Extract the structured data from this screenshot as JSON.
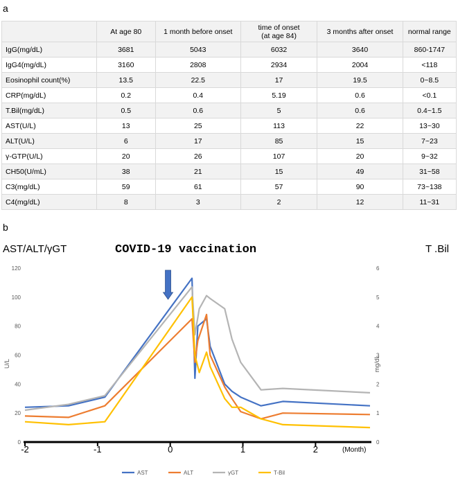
{
  "panel_a_label": "a",
  "panel_b_label": "b",
  "table": {
    "headers": [
      "",
      "At age 80",
      "1 month before onset",
      "time of onset\n(at age 84)",
      "3 months after onset",
      "normal range"
    ],
    "header_lines": [
      [
        ""
      ],
      [
        "At age 80"
      ],
      [
        "1 month before onset"
      ],
      [
        "time of onset",
        "(at age 84)"
      ],
      [
        "3 months after onset"
      ],
      [
        "normal range"
      ]
    ],
    "rows": [
      [
        "IgG(mg/dL)",
        "3681",
        "5043",
        "6032",
        "3640",
        "860-1747"
      ],
      [
        "IgG4(mg/dL)",
        "3160",
        "2808",
        "2934",
        "2004",
        "<118"
      ],
      [
        "Eosinophil count(%)",
        "13.5",
        "22.5",
        "17",
        "19.5",
        "0~8.5"
      ],
      [
        "CRP(mg/dL)",
        "0.2",
        "0.4",
        "5.19",
        "0.6",
        "<0.1"
      ],
      [
        "T.Bil(mg/dL)",
        "0.5",
        "0.6",
        "5",
        "0.6",
        "0.4~1.5"
      ],
      [
        "AST(U/L)",
        "13",
        "25",
        "113",
        "22",
        "13~30"
      ],
      [
        "ALT(U/L)",
        "6",
        "17",
        "85",
        "15",
        "7~23"
      ],
      [
        "γ-GTP(U/L)",
        "20",
        "26",
        "107",
        "20",
        "9~32"
      ],
      [
        "CH50(U/mL)",
        "38",
        "21",
        "15",
        "49",
        "31~58"
      ],
      [
        "C3(mg/dL)",
        "59",
        "61",
        "57",
        "90",
        "73~138"
      ],
      [
        "C4(mg/dL)",
        "8",
        "3",
        "2",
        "12",
        "11~31"
      ]
    ]
  },
  "chart_data": {
    "type": "line",
    "left_header": "AST/ALT/γGT",
    "right_header": "T .Bil",
    "annotation": "COVID-19 vaccination",
    "annotation_x": -0.03,
    "ylabel": "U/L",
    "y2label": "mg/dL",
    "xlabel": "(Month)",
    "xlim": [
      -2,
      2.75
    ],
    "ylim": [
      0,
      120
    ],
    "y2lim": [
      0,
      6
    ],
    "yticks": [
      0,
      20,
      40,
      60,
      80,
      100,
      120
    ],
    "y2ticks": [
      0,
      1,
      2,
      3,
      4,
      5,
      6
    ],
    "xticks": [
      -2,
      -1,
      0,
      1,
      2
    ],
    "grid": false,
    "legend_position": "bottom",
    "series": [
      {
        "name": "AST",
        "color": "#4472c4",
        "axis": "left",
        "x": [
          -2,
          -1.4,
          -0.9,
          0.3,
          0.34,
          0.38,
          0.5,
          0.55,
          0.75,
          0.85,
          0.97,
          1.25,
          1.55,
          2.75
        ],
        "y": [
          24,
          25,
          31,
          113,
          44,
          80,
          85,
          66,
          40,
          35,
          31,
          25,
          28,
          25
        ]
      },
      {
        "name": "ALT",
        "color": "#ed7d31",
        "axis": "left",
        "x": [
          -2,
          -1.4,
          -0.9,
          0.3,
          0.34,
          0.38,
          0.5,
          0.55,
          0.75,
          0.85,
          0.97,
          1.25,
          1.55,
          2.75
        ],
        "y": [
          18,
          17,
          25,
          85,
          55,
          70,
          88,
          60,
          38,
          30,
          21,
          16,
          20,
          19
        ]
      },
      {
        "name": "γGT",
        "color": "#b4b4b4",
        "axis": "left",
        "x": [
          -2,
          -1.4,
          -0.9,
          0.3,
          0.34,
          0.4,
          0.5,
          0.55,
          0.75,
          0.85,
          0.97,
          1.25,
          1.55,
          2.75
        ],
        "y": [
          22,
          26,
          32,
          107,
          74,
          92,
          101,
          99,
          92,
          71,
          55,
          36,
          37,
          34
        ]
      },
      {
        "name": "T-Bil",
        "color": "#ffc000",
        "axis": "right",
        "x": [
          -2,
          -1.4,
          -0.9,
          0.3,
          0.34,
          0.4,
          0.5,
          0.55,
          0.75,
          0.85,
          0.97,
          1.25,
          1.55,
          2.75
        ],
        "y": [
          0.7,
          0.6,
          0.7,
          5.0,
          3.0,
          2.4,
          3.1,
          2.6,
          1.5,
          1.2,
          1.2,
          0.8,
          0.6,
          0.5
        ]
      }
    ]
  }
}
